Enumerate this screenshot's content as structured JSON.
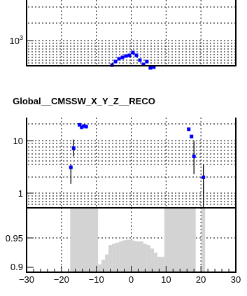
{
  "chart_data": [
    {
      "type": "scatter",
      "panel": "top",
      "yscale": "log",
      "y_tick_label": {
        "base": "10",
        "exp": "3"
      },
      "series": [
        {
          "color": "#0000ff",
          "points": [
            {
              "x": -5.5,
              "y": 640
            },
            {
              "x": -4.5,
              "y": 700
            },
            {
              "x": -3.5,
              "y": 760
            },
            {
              "x": -2.5,
              "y": 800
            },
            {
              "x": -1.5,
              "y": 840
            },
            {
              "x": -0.5,
              "y": 860
            },
            {
              "x": 0.5,
              "y": 930
            },
            {
              "x": 1.5,
              "y": 880
            },
            {
              "x": 2.5,
              "y": 760
            },
            {
              "x": 3.5,
              "y": 650
            },
            {
              "x": 4.5,
              "y": 710
            },
            {
              "x": 5.5,
              "y": 600
            },
            {
              "x": 6.5,
              "y": 610
            }
          ]
        }
      ]
    },
    {
      "type": "scatter",
      "panel": "middle",
      "title": "Global__CMSSW_X_Y_Z__RECO",
      "yscale": "log",
      "y_tick_labels": [
        "10",
        "1"
      ],
      "series": [
        {
          "color": "#0000ff",
          "points": [
            {
              "x": -17.3,
              "y": 3.1,
              "err_low": 1.5,
              "err_high": 3.5
            },
            {
              "x": -16.5,
              "y": 7.2,
              "err_low": 5.0,
              "err_high": 10.5
            },
            {
              "x": -14.8,
              "y": 20.0
            },
            {
              "x": -14.2,
              "y": 18.0
            },
            {
              "x": -13.6,
              "y": 19.0
            },
            {
              "x": -12.9,
              "y": 18.5
            },
            {
              "x": 16.5,
              "y": 16.5
            },
            {
              "x": 17.3,
              "y": 12.0
            },
            {
              "x": 18.0,
              "y": 5.0,
              "err_low": 2.3,
              "err_high": 10.0
            },
            {
              "x": 20.7,
              "y": 2.0,
              "err_low": 1.0,
              "err_high": 3.5
            }
          ]
        }
      ]
    },
    {
      "type": "area",
      "panel": "bottom",
      "y_tick_labels": [
        "0.95",
        "0.9"
      ],
      "x_tick_labels": [
        "−30",
        "−20",
        "−10",
        "0",
        "10",
        "20",
        "30"
      ],
      "fill_color": "#d3d3d3",
      "bins": [
        {
          "x0": -17.5,
          "x1": -9.5,
          "y": 1.0
        },
        {
          "x0": -9.5,
          "x1": -8.5,
          "y": 0.905
        },
        {
          "x0": -8.5,
          "x1": -7.5,
          "y": 0.913
        },
        {
          "x0": -7.5,
          "x1": -6.5,
          "y": 0.922
        },
        {
          "x0": -6.5,
          "x1": -5.5,
          "y": 0.938
        },
        {
          "x0": -5.5,
          "x1": -4.5,
          "y": 0.94
        },
        {
          "x0": -4.5,
          "x1": -3.5,
          "y": 0.942
        },
        {
          "x0": -3.5,
          "x1": -2.5,
          "y": 0.944
        },
        {
          "x0": -2.5,
          "x1": -1.5,
          "y": 0.946
        },
        {
          "x0": -1.5,
          "x1": 0.5,
          "y": 0.947
        },
        {
          "x0": 0.5,
          "x1": 1.5,
          "y": 0.945
        },
        {
          "x0": 1.5,
          "x1": 3.5,
          "y": 0.944
        },
        {
          "x0": 3.5,
          "x1": 4.5,
          "y": 0.94
        },
        {
          "x0": 4.5,
          "x1": 5.5,
          "y": 0.938
        },
        {
          "x0": 5.5,
          "x1": 6.5,
          "y": 0.932
        },
        {
          "x0": 6.5,
          "x1": 7.5,
          "y": 0.925
        },
        {
          "x0": 7.5,
          "x1": 9.5,
          "y": 0.918
        },
        {
          "x0": 9.5,
          "x1": 18.5,
          "y": 1.0
        },
        {
          "x0": 20.2,
          "x1": 21.2,
          "y": 1.0
        }
      ]
    }
  ]
}
